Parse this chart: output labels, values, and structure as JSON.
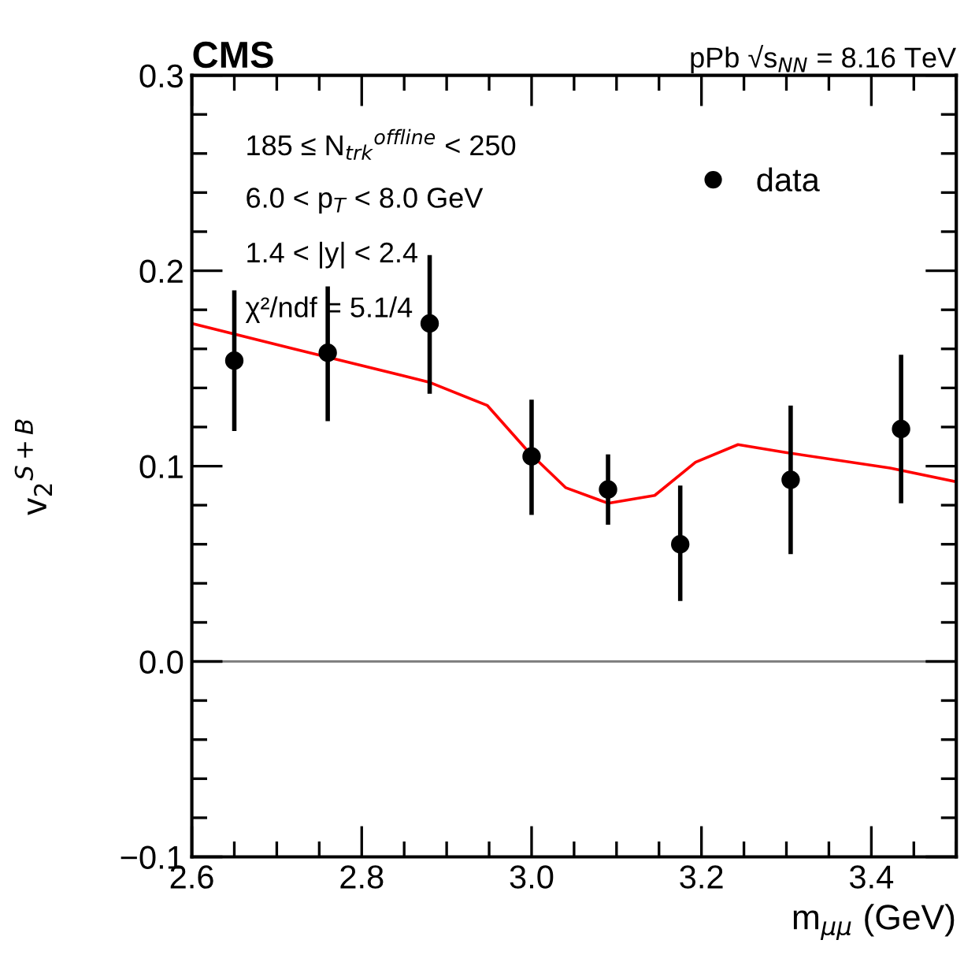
{
  "chart_data": {
    "type": "scatter",
    "title": "CMS",
    "subtitle": "pPb √s$_{NN}$ = 8.16 TeV",
    "xlabel": "m$_{μμ}$ (GeV)",
    "ylabel": "v$_{2}$$^{S+B}$",
    "x": [
      2.65,
      2.76,
      2.88,
      3.0,
      3.09,
      3.175,
      3.305,
      3.435
    ],
    "series": [
      {
        "name": "data",
        "color": "#000000",
        "marker": "circle",
        "values": [
          0.154,
          0.158,
          0.173,
          0.105,
          0.088,
          0.06,
          0.093,
          0.119
        ],
        "errors": [
          [
            0.118,
            0.19
          ],
          [
            0.123,
            0.192
          ],
          [
            0.137,
            0.208
          ],
          [
            0.075,
            0.134
          ],
          [
            0.07,
            0.106
          ],
          [
            0.031,
            0.09
          ],
          [
            0.055,
            0.131
          ],
          [
            0.081,
            0.157
          ]
        ]
      },
      {
        "type": "line",
        "color": "#ff0000",
        "x": [
          2.6,
          2.72,
          2.879,
          2.948,
          2.997,
          3.04,
          3.09,
          3.145,
          3.193,
          3.243,
          3.299,
          3.422,
          3.5
        ],
        "values": [
          0.173,
          0.16,
          0.143,
          0.131,
          0.107,
          0.089,
          0.081,
          0.085,
          0.102,
          0.111,
          0.107,
          0.099,
          0.092
        ]
      }
    ],
    "annotations": [
      "185 ≤ N$_{trk}$$^{offline}$ < 250",
      "6.0 < p$_{T}$ < 8.0 GeV",
      "1.4 < |y| < 2.4",
      "χ²/ndf = 5.1/4"
    ],
    "ref_lines": [
      {
        "axis": "y",
        "value": 0,
        "color": "#808080"
      }
    ],
    "xlim": [
      2.6,
      3.5
    ],
    "xticks": [
      {
        "value": 2.6,
        "label": "2.6"
      },
      {
        "value": 2.8,
        "label": "2.8"
      },
      {
        "value": 3.0,
        "label": "3.0"
      },
      {
        "value": 3.2,
        "label": "3.2"
      },
      {
        "value": 3.4,
        "label": "3.4"
      }
    ],
    "ylim": [
      -0.1,
      0.3
    ],
    "yticks": [
      {
        "value": -0.1,
        "label": "−0.1"
      },
      {
        "value": 0,
        "label": "0.0"
      },
      0.1,
      0.2,
      0.3
    ],
    "legend": "top right",
    "grid": false
  }
}
